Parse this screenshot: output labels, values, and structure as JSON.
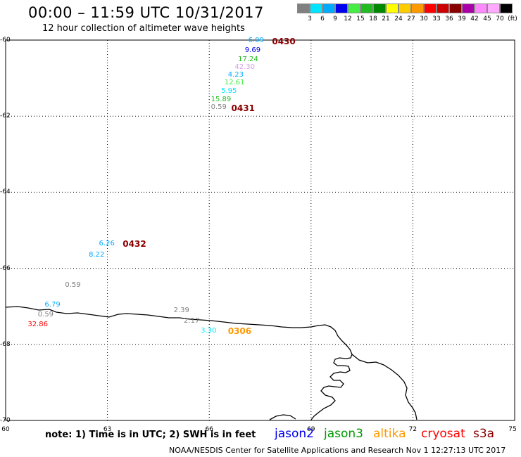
{
  "header": {
    "title": "00:00 – 11:59 UTC 10/31/2017",
    "subtitle": "12 hour collection of altimeter wave heights"
  },
  "colorbar": {
    "colors": [
      "#808080",
      "#00e5ff",
      "#00aaff",
      "#0000ee",
      "#44ee44",
      "#22bb22",
      "#008800",
      "#ffff00",
      "#ffcc00",
      "#ff9900",
      "#ff0000",
      "#cc0000",
      "#880000",
      "#aa00aa",
      "#ff88ff",
      "#ffaaff",
      "#000000"
    ],
    "ticks": [
      "3",
      "6",
      "9",
      "12",
      "15",
      "18",
      "21",
      "24",
      "27",
      "30",
      "33",
      "36",
      "39",
      "42",
      "45",
      "70",
      "(ft)"
    ]
  },
  "axes": {
    "y_ticks": [
      "-60",
      "-62",
      "-64",
      "-66",
      "-68",
      "-70"
    ],
    "x_ticks": [
      "60",
      "63",
      "66",
      "69",
      "72",
      "75"
    ]
  },
  "chart_data": {
    "type": "map",
    "lon_range": [
      60,
      75
    ],
    "lat_range": [
      -70,
      -60
    ],
    "observations": [
      {
        "text": "6.09",
        "lon": 67.15,
        "lat": -60.02,
        "color": "#00aaff"
      },
      {
        "text": "9.69",
        "lon": 67.05,
        "lat": -60.28,
        "color": "#0000ee"
      },
      {
        "text": "17.24",
        "lon": 66.85,
        "lat": -60.51,
        "color": "#22bb22"
      },
      {
        "text": "42.30",
        "lon": 66.75,
        "lat": -60.72,
        "color": "#d8a0e8"
      },
      {
        "text": "4.23",
        "lon": 66.55,
        "lat": -60.92,
        "color": "#00aaff"
      },
      {
        "text": "12.61",
        "lon": 66.45,
        "lat": -61.12,
        "color": "#44ee44"
      },
      {
        "text": "5.95",
        "lon": 66.35,
        "lat": -61.35,
        "color": "#00e5ff"
      },
      {
        "text": "15.89",
        "lon": 66.05,
        "lat": -61.57,
        "color": "#22bb22"
      },
      {
        "text": "0.59",
        "lon": 66.05,
        "lat": -61.78,
        "color": "#808080"
      },
      {
        "text": "6.26",
        "lon": 62.75,
        "lat": -65.36,
        "color": "#00aaff"
      },
      {
        "text": "8.22",
        "lon": 62.45,
        "lat": -65.66,
        "color": "#00aaff"
      },
      {
        "text": "0.59",
        "lon": 61.75,
        "lat": -66.45,
        "color": "#808080"
      },
      {
        "text": "6.79",
        "lon": 61.15,
        "lat": -66.97,
        "color": "#00aaff"
      },
      {
        "text": "0.59",
        "lon": 60.95,
        "lat": -67.22,
        "color": "#808080"
      },
      {
        "text": "32.86",
        "lon": 60.65,
        "lat": -67.48,
        "color": "#ff0000"
      },
      {
        "text": "2.39",
        "lon": 64.95,
        "lat": -67.12,
        "color": "#808080"
      },
      {
        "text": "2.17",
        "lon": 65.25,
        "lat": -67.4,
        "color": "#808080"
      },
      {
        "text": "3.30",
        "lon": 65.75,
        "lat": -67.66,
        "color": "#00e5ff"
      }
    ],
    "pass_times": [
      {
        "text": "0430",
        "lon": 67.85,
        "lat": -60.04
      },
      {
        "text": "0431",
        "lon": 66.65,
        "lat": -61.8
      },
      {
        "text": "0432",
        "lon": 63.45,
        "lat": -65.36
      },
      {
        "text": "0306",
        "lon": 66.55,
        "lat": -67.66,
        "color": "#ff9900"
      }
    ]
  },
  "note": "note: 1) Time is in UTC; 2) SWH is in feet",
  "satellites": [
    {
      "name": "jason2",
      "color": "#0000ee"
    },
    {
      "name": "jason3",
      "color": "#009900"
    },
    {
      "name": "altika",
      "color": "#ff9900"
    },
    {
      "name": "cryosat",
      "color": "#ff0000"
    },
    {
      "name": "s3a",
      "color": "#880000"
    }
  ],
  "footer": "NOAA/NESDIS Center for Satellite Applications and Research    Nov  1 12:27:13 UTC 2017"
}
